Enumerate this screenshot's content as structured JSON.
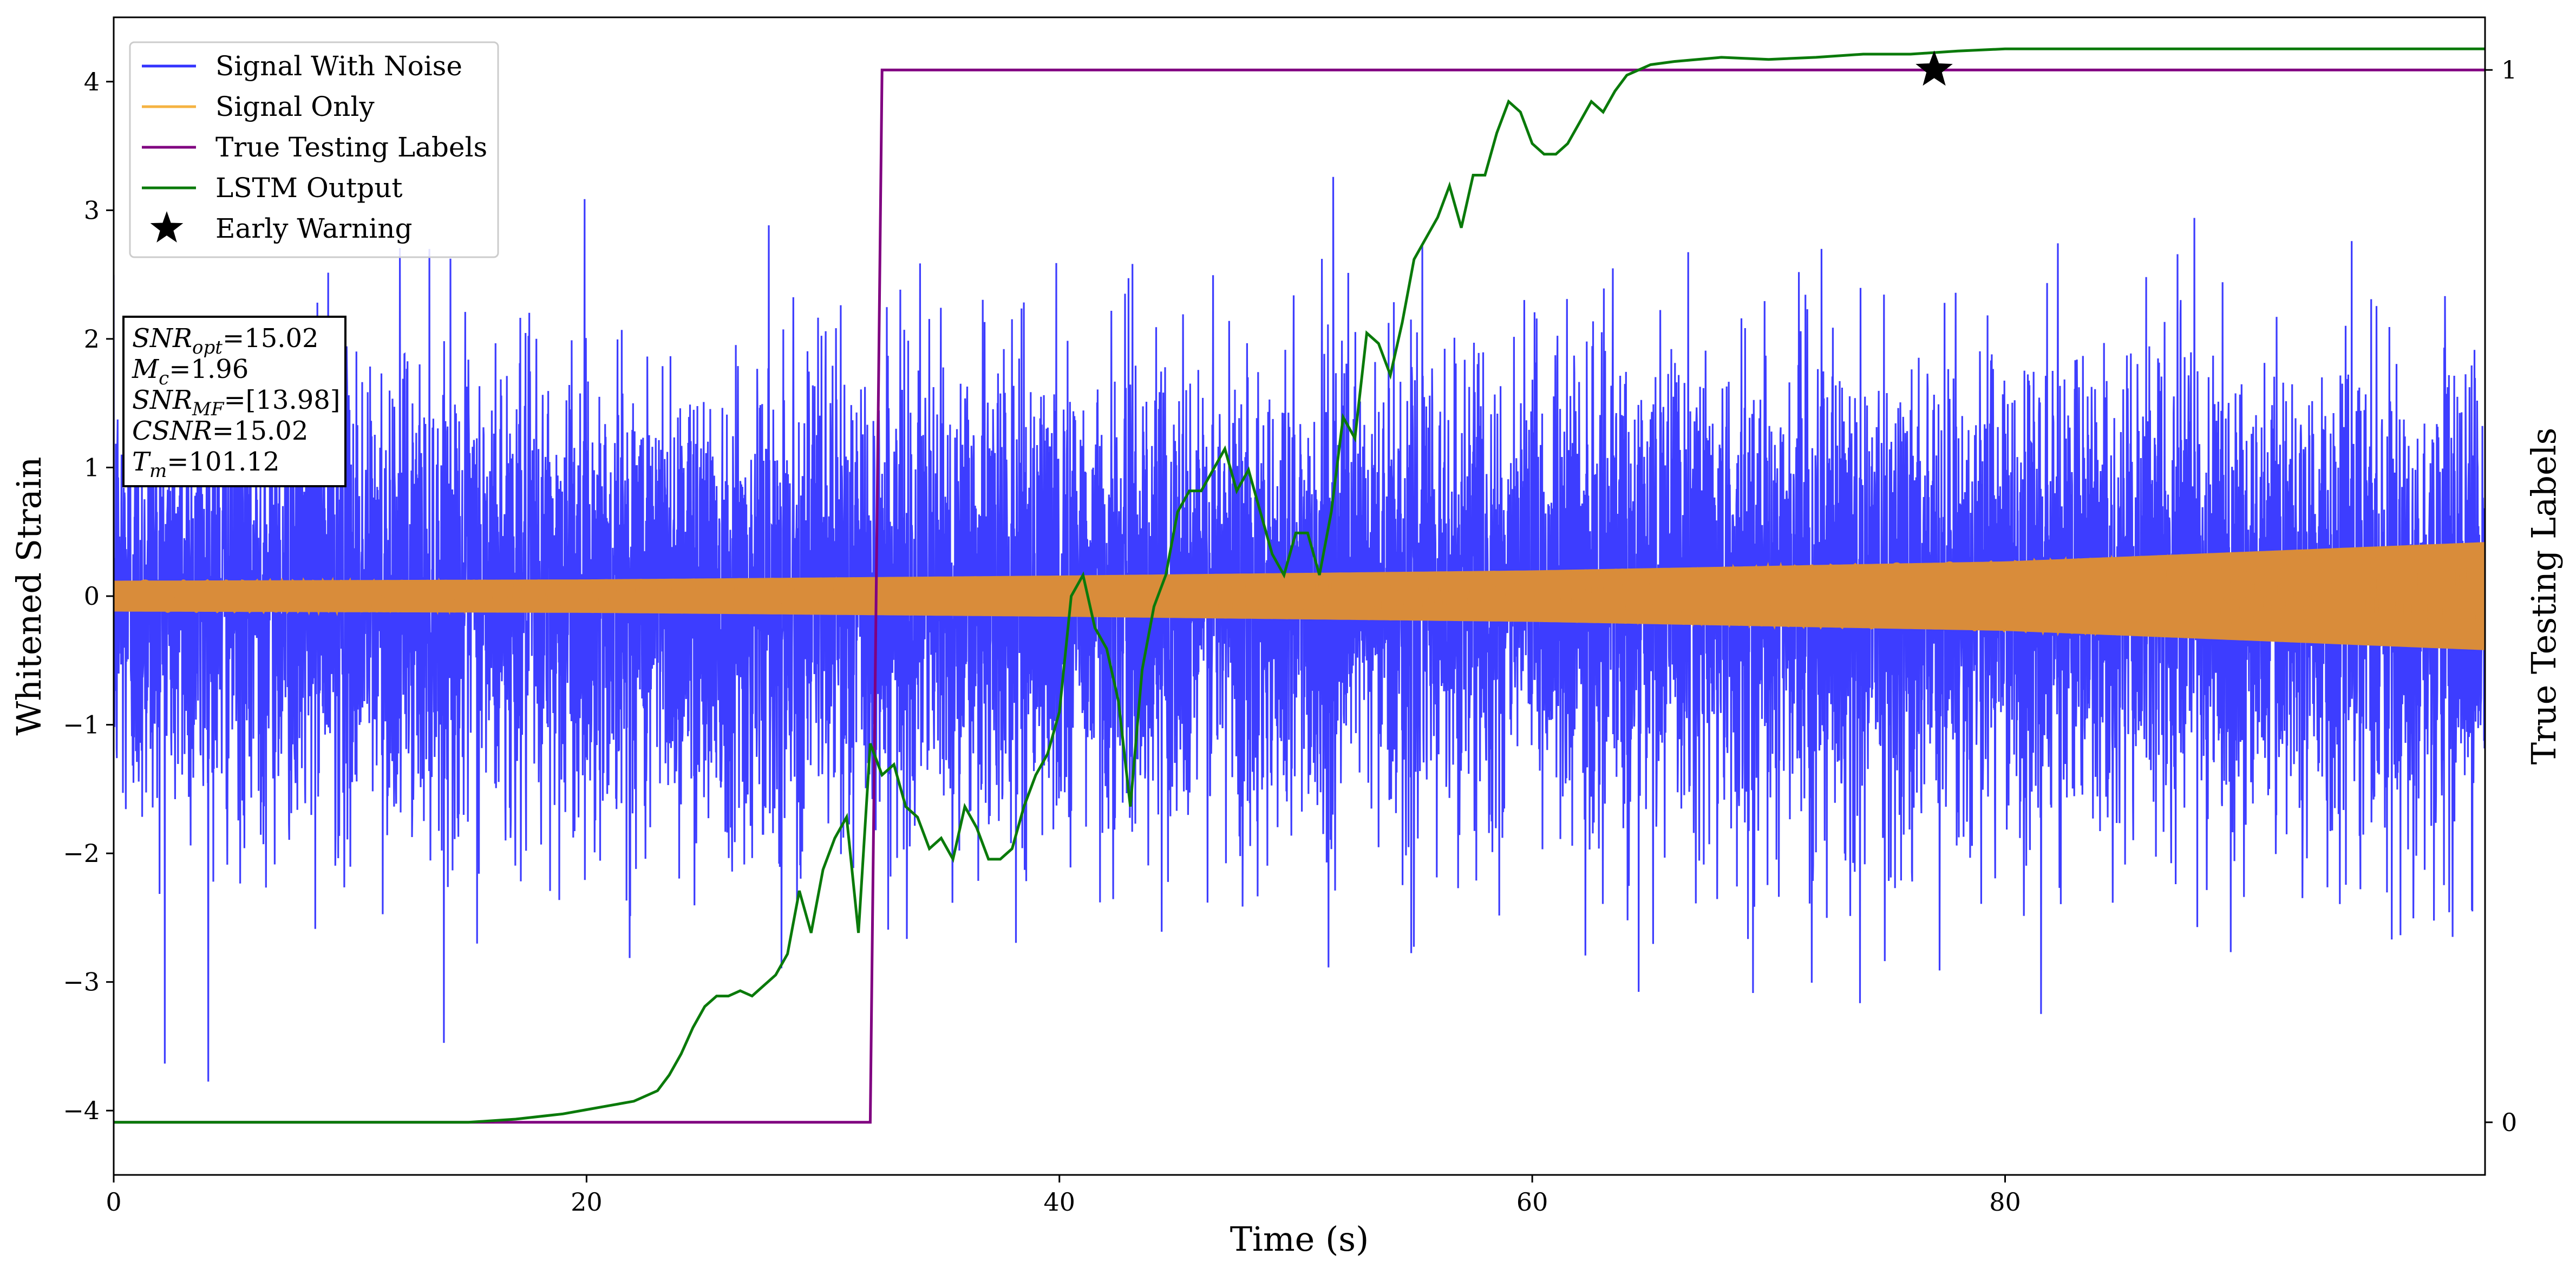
{
  "chart_data": {
    "type": "line",
    "xlabel": "Time (s)",
    "ylabel": "Whitened Strain",
    "y2label": "True Testing Labels",
    "xlim": [
      0,
      100.3
    ],
    "ylim": [
      -4.5,
      4.5
    ],
    "y2lim": [
      -0.05,
      1.05
    ],
    "x_ticks": [
      0,
      20,
      40,
      60,
      80
    ],
    "x_tick_labels": [
      "0",
      "20",
      "40",
      "60",
      "80"
    ],
    "y_ticks": [
      -4,
      -3,
      -2,
      -1,
      0,
      1,
      2,
      3,
      4
    ],
    "y_tick_labels": [
      "−4",
      "−3",
      "−2",
      "−1",
      "0",
      "1",
      "2",
      "3",
      "4"
    ],
    "y2_ticks": [
      0,
      1
    ],
    "y2_tick_labels": [
      "0",
      "1"
    ],
    "grid": false,
    "legend_position": "top-left",
    "legend": [
      {
        "label": "Signal With Noise",
        "color": "#3333ff",
        "marker": "line"
      },
      {
        "label": "Signal Only",
        "color": "#f5b342",
        "marker": "line"
      },
      {
        "label": "True Testing Labels",
        "color": "#800080",
        "marker": "line"
      },
      {
        "label": "LSTM Output",
        "color": "#0a7a0a",
        "marker": "line"
      },
      {
        "label": "Early Warning",
        "color": "#000000",
        "marker": "star"
      }
    ],
    "annotation_box": {
      "lines": [
        {
          "base": "SNR",
          "sub": "opt",
          "value": "=15.02"
        },
        {
          "base": "M",
          "sub": "c",
          "value": "=1.96"
        },
        {
          "base": "SNR",
          "sub": "MF",
          "value": "=[13.98]"
        },
        {
          "base": "CSNR",
          "sub": "",
          "value": "=15.02"
        },
        {
          "base": "T",
          "sub": "m",
          "value": "=101.12"
        }
      ]
    },
    "series": [
      {
        "name": "Signal With Noise",
        "color": "#3333ff",
        "axis": "left",
        "description": "dense gaussian noise band, std approx 0.9, spikes to about ±4",
        "noise_std": 0.9,
        "x_range": [
          0,
          100.3
        ]
      },
      {
        "name": "Signal Only",
        "color": "#d98c3a",
        "axis": "left",
        "description": "chirp signal envelope growing with time",
        "envelope_x": [
          0,
          20,
          40,
          60,
          80,
          100.3
        ],
        "envelope_amp": [
          0.12,
          0.13,
          0.16,
          0.2,
          0.27,
          0.42
        ]
      },
      {
        "name": "True Testing Labels",
        "color": "#800080",
        "axis": "right",
        "x": [
          0,
          32.0,
          32.5,
          100.3
        ],
        "y": [
          0,
          0,
          1,
          1
        ]
      },
      {
        "name": "LSTM Output",
        "color": "#0a7a0a",
        "axis": "right",
        "x": [
          0,
          15,
          17,
          19,
          20,
          21,
          22,
          23,
          23.5,
          24,
          24.5,
          25,
          25.5,
          26,
          26.5,
          27,
          27.5,
          28,
          28.5,
          29,
          29.5,
          30,
          30.5,
          31,
          31.5,
          32,
          32.5,
          33,
          33.5,
          34,
          34.5,
          35,
          35.5,
          36,
          36.5,
          37,
          37.5,
          38,
          38.5,
          39,
          39.5,
          40,
          40.5,
          41,
          41.5,
          42,
          42.5,
          43,
          43.5,
          44,
          44.5,
          45,
          45.5,
          46,
          46.5,
          47,
          47.5,
          48,
          48.5,
          49,
          49.5,
          50,
          50.5,
          51,
          51.5,
          52,
          52.5,
          53,
          53.5,
          54,
          54.5,
          55,
          55.5,
          56,
          56.5,
          57,
          57.5,
          58,
          58.5,
          59,
          59.5,
          60,
          60.5,
          61,
          61.5,
          62,
          62.5,
          63,
          63.5,
          64,
          64.5,
          65,
          66,
          67,
          68,
          70,
          72,
          74,
          76,
          78,
          80,
          85,
          90,
          100.3
        ],
        "y": [
          0.0,
          0.0,
          0.003,
          0.008,
          0.012,
          0.016,
          0.02,
          0.03,
          0.045,
          0.065,
          0.09,
          0.11,
          0.12,
          0.12,
          0.125,
          0.12,
          0.13,
          0.14,
          0.16,
          0.22,
          0.18,
          0.24,
          0.27,
          0.29,
          0.18,
          0.36,
          0.33,
          0.34,
          0.3,
          0.29,
          0.26,
          0.27,
          0.25,
          0.3,
          0.28,
          0.25,
          0.25,
          0.26,
          0.3,
          0.33,
          0.35,
          0.39,
          0.5,
          0.52,
          0.47,
          0.45,
          0.4,
          0.3,
          0.43,
          0.49,
          0.52,
          0.58,
          0.6,
          0.6,
          0.62,
          0.64,
          0.6,
          0.62,
          0.58,
          0.54,
          0.52,
          0.56,
          0.56,
          0.52,
          0.58,
          0.67,
          0.65,
          0.75,
          0.74,
          0.71,
          0.76,
          0.82,
          0.84,
          0.86,
          0.89,
          0.85,
          0.9,
          0.9,
          0.94,
          0.97,
          0.96,
          0.93,
          0.92,
          0.92,
          0.93,
          0.95,
          0.97,
          0.96,
          0.98,
          0.995,
          1.0,
          1.005,
          1.008,
          1.01,
          1.012,
          1.01,
          1.012,
          1.015,
          1.015,
          1.018,
          1.02,
          1.02,
          1.02,
          1.02
        ]
      },
      {
        "name": "Early Warning",
        "color": "#000000",
        "axis": "right",
        "marker": "star",
        "x": [
          77.0
        ],
        "y": [
          1.0
        ]
      }
    ]
  }
}
